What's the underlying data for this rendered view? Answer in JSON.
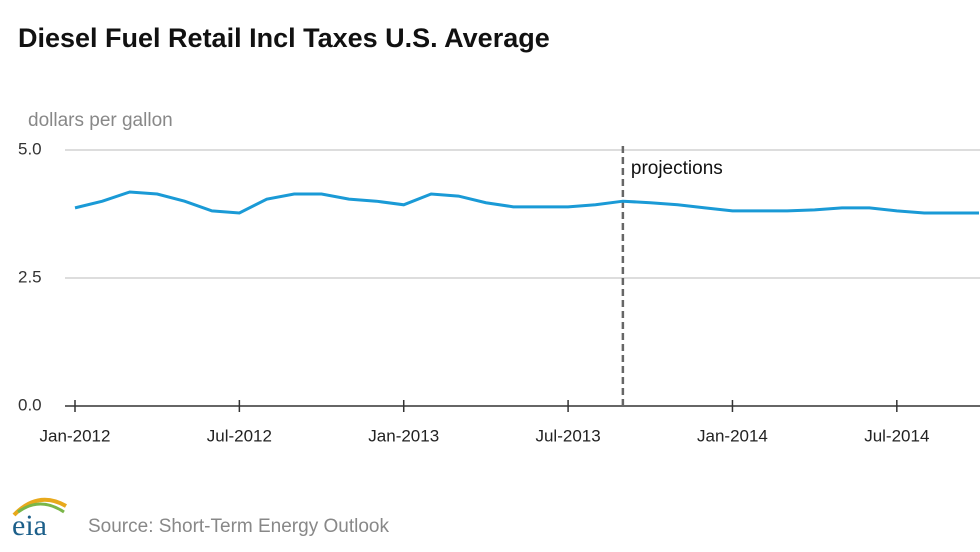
{
  "chart_data": {
    "type": "line",
    "title": "Diesel Fuel Retail Incl Taxes U.S. Average",
    "y_label": "dollars per gallon",
    "source": "Source: Short-Term Energy Outlook",
    "logo": "eia",
    "x": [
      "2012-01",
      "2012-02",
      "2012-03",
      "2012-04",
      "2012-05",
      "2012-06",
      "2012-07",
      "2012-08",
      "2012-09",
      "2012-10",
      "2012-11",
      "2012-12",
      "2013-01",
      "2013-02",
      "2013-03",
      "2013-04",
      "2013-05",
      "2013-06",
      "2013-07",
      "2013-08",
      "2013-09",
      "2013-10",
      "2013-11",
      "2013-12",
      "2014-01",
      "2014-02",
      "2014-03",
      "2014-04",
      "2014-05",
      "2014-06",
      "2014-07",
      "2014-08",
      "2014-09",
      "2014-10"
    ],
    "series": [
      {
        "name": "Diesel Fuel Retail Incl Taxes U.S. Average",
        "color": "#1a9ad6",
        "values": [
          3.87,
          4.0,
          4.18,
          4.14,
          4.0,
          3.81,
          3.77,
          4.04,
          4.14,
          4.14,
          4.04,
          4.0,
          3.93,
          4.14,
          4.1,
          3.97,
          3.89,
          3.89,
          3.89,
          3.93,
          4.0,
          3.97,
          3.93,
          3.87,
          3.81,
          3.81,
          3.81,
          3.83,
          3.87,
          3.87,
          3.81,
          3.77,
          3.77,
          3.77
        ]
      }
    ],
    "xlim": [
      "2012-01",
      "2014-10"
    ],
    "xticks": [
      {
        "value": "2012-01",
        "label": "Jan-2012"
      },
      {
        "value": "2012-07",
        "label": "Jul-2012"
      },
      {
        "value": "2013-01",
        "label": "Jan-2013"
      },
      {
        "value": "2013-07",
        "label": "Jul-2013"
      },
      {
        "value": "2014-01",
        "label": "Jan-2014"
      },
      {
        "value": "2014-07",
        "label": "Jul-2014"
      }
    ],
    "ylim": [
      0,
      5
    ],
    "yticks": [
      {
        "value": 0,
        "label": "0.0"
      },
      {
        "value": 2.5,
        "label": "2.5"
      },
      {
        "value": 5,
        "label": "5.0"
      }
    ],
    "grid": true,
    "projection": {
      "x": "2013-09",
      "label": "projections"
    }
  }
}
